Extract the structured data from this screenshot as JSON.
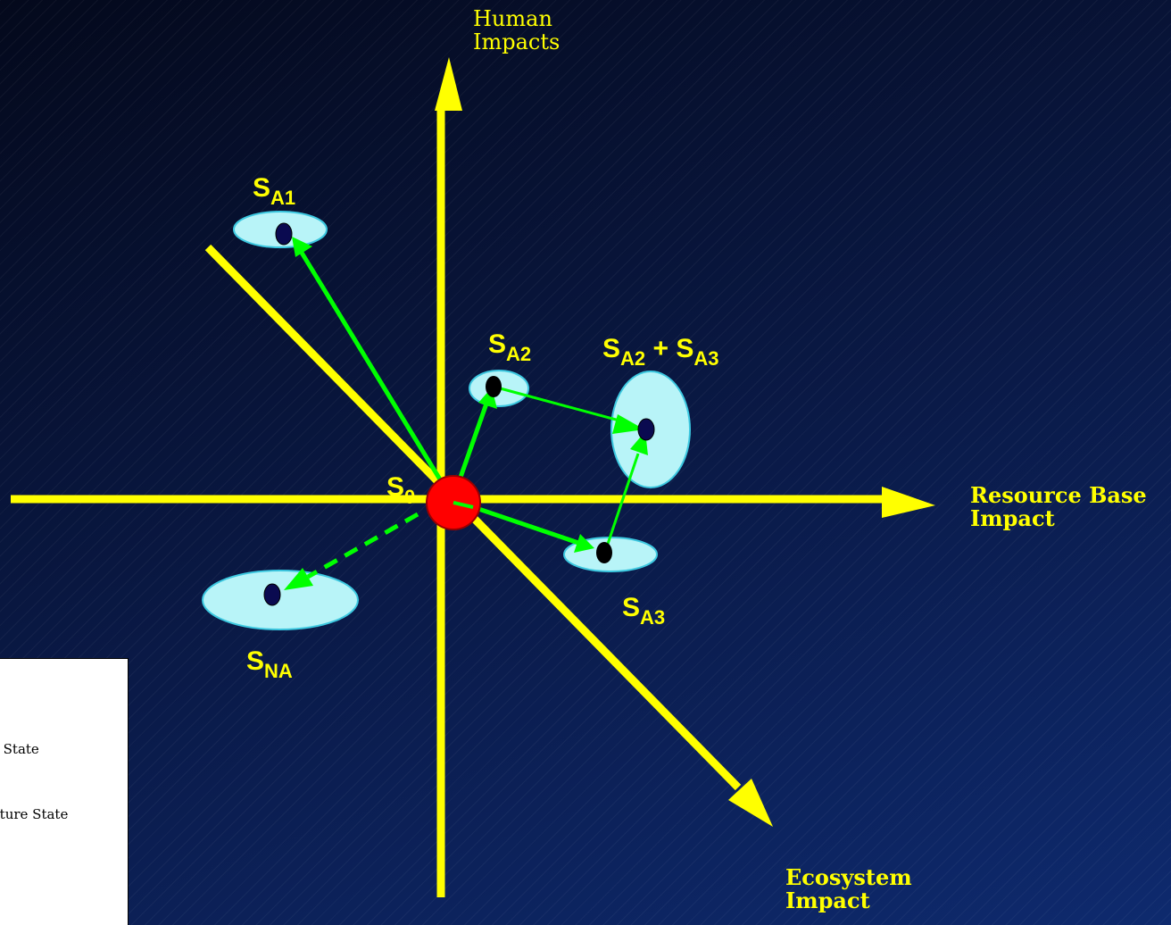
{
  "axes": {
    "human": "Human\nImpacts",
    "resource": "Resource Base\nImpact",
    "ecosystem": "Ecosystem\nImpact"
  },
  "states": {
    "s0": {
      "main": "S",
      "sub": "0"
    },
    "sa1": {
      "main": "S",
      "sub": "A1"
    },
    "sa2": {
      "main": "S",
      "sub": "A2"
    },
    "sa3": {
      "main": "S",
      "sub": "A3"
    },
    "sa2a3": {
      "main1": "S",
      "sub1": "A2",
      "plus": " + ",
      "main2": "S",
      "sub2": "A3"
    },
    "sna": {
      "main": "S",
      "sub": "NA"
    }
  },
  "legend": {
    "line1": "e State",
    "line2": "uture State"
  },
  "colors": {
    "axis": "#ffff00",
    "arrow": "#00ff00",
    "ellipse_fill": "#b8f4f8",
    "ellipse_stroke": "#3cc8e0",
    "origin": "#ff0000",
    "dot": "#0a0a50"
  }
}
